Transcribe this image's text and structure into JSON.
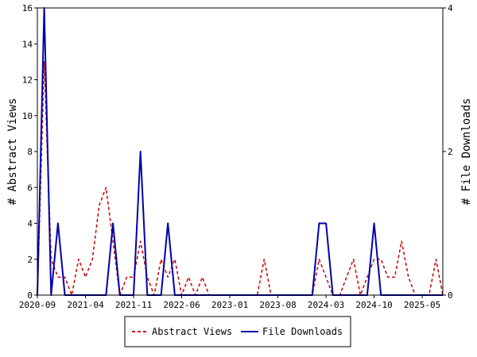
{
  "chart_data": {
    "type": "line",
    "xlabel": "",
    "ylabel": "# Abstract Views",
    "y2label": "# File Downloads",
    "ylim": [
      0,
      16
    ],
    "y2lim": [
      0,
      4
    ],
    "y_ticks": [
      "0",
      "2",
      "4",
      "6",
      "8",
      "10",
      "12",
      "14",
      "16"
    ],
    "y2_ticks": [
      "0",
      "2",
      "4"
    ],
    "x_ticks": [
      "2020-09",
      "2021-04",
      "2021-11",
      "2022-06",
      "2023-01",
      "2023-08",
      "2024-03",
      "2024-10",
      "2025-05"
    ],
    "x_tick_index": [
      0,
      7,
      14,
      21,
      28,
      35,
      42,
      49,
      56
    ],
    "grid": false,
    "legend_position": "bottom",
    "series": [
      {
        "name": "Abstract Views",
        "axis": "left",
        "color": "#cc0000",
        "style": "dashed",
        "values": [
          0,
          13,
          2,
          1,
          1,
          0,
          2,
          1,
          2,
          5,
          6,
          3,
          0,
          1,
          1,
          3,
          1,
          0,
          2,
          1,
          2,
          0,
          1,
          0,
          1,
          0,
          0,
          0,
          0,
          0,
          0,
          0,
          0,
          2,
          0,
          0,
          0,
          0,
          0,
          0,
          0,
          2,
          1,
          0,
          0,
          1,
          2,
          0,
          1,
          2,
          2,
          1,
          1,
          3,
          1,
          0,
          0,
          0,
          2,
          0
        ]
      },
      {
        "name": "File Downloads",
        "axis": "right",
        "color": "#0000aa",
        "style": "solid",
        "values": [
          0,
          4,
          0,
          1,
          0,
          0,
          0,
          0,
          0,
          0,
          0,
          1,
          0,
          0,
          0,
          2,
          0,
          0,
          0,
          1,
          0,
          0,
          0,
          0,
          0,
          0,
          0,
          0,
          0,
          0,
          0,
          0,
          0,
          0,
          0,
          0,
          0,
          0,
          0,
          0,
          0,
          1,
          1,
          0,
          0,
          0,
          0,
          0,
          0,
          1,
          0,
          0,
          0,
          0,
          0,
          0,
          0,
          0,
          0,
          0
        ]
      }
    ]
  }
}
